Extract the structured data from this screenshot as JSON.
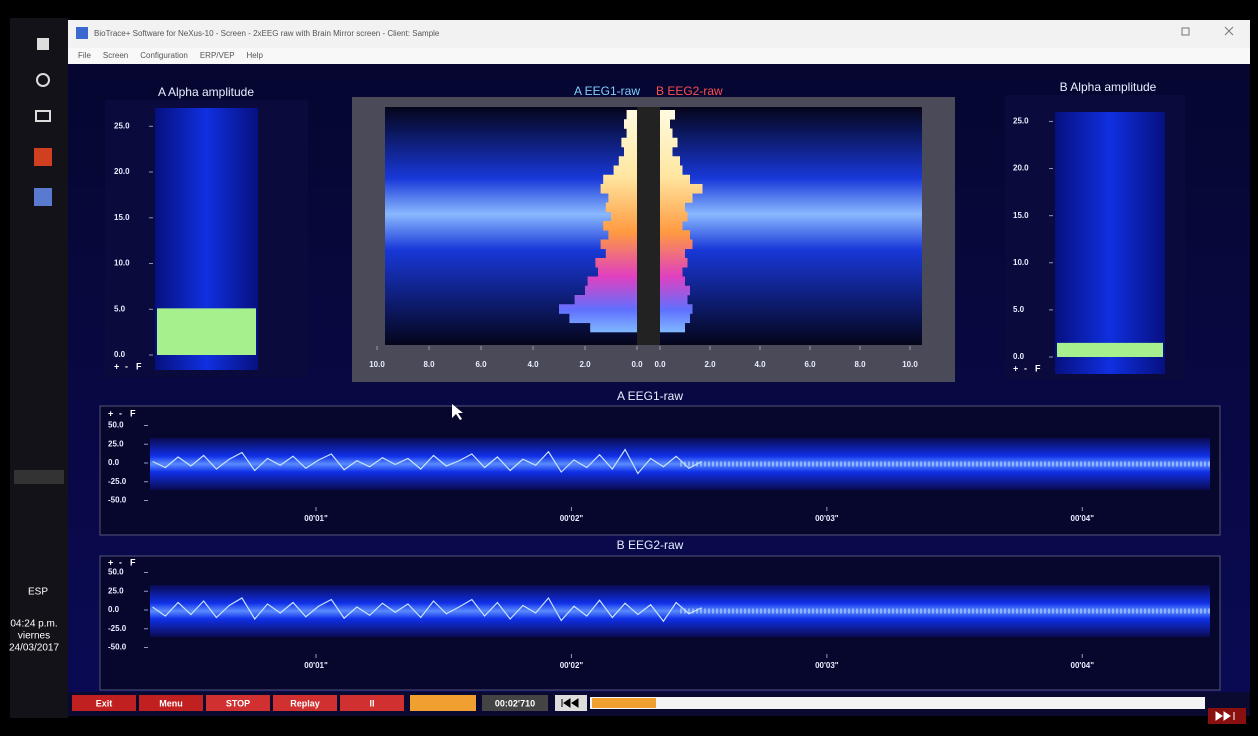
{
  "window": {
    "title": "BioTrace+ Software for NeXus-10 - Screen - 2xEEG raw with Brain Mirror screen - Client: Sample",
    "menu": [
      "File",
      "Screen",
      "Configuration",
      "ERP/VEP",
      "Help"
    ]
  },
  "taskbar": {
    "language": "ESP",
    "time": "04:24 p.m.",
    "day": "viernes",
    "date": "24/03/2017"
  },
  "panel_controls": [
    "+",
    "-",
    "F"
  ],
  "toolbar": {
    "buttons": [
      "Exit",
      "Menu",
      "STOP",
      "Replay",
      "II"
    ],
    "time": "00:02'710"
  },
  "chart_data": [
    {
      "type": "bar",
      "title": "A Alpha amplitude",
      "values": [
        5.1
      ],
      "color": "#a6f08e",
      "ylim": [
        0,
        27
      ],
      "yticks": [
        {
          "value": 0,
          "label": "0.0"
        },
        {
          "value": 5,
          "label": "5.0"
        },
        {
          "value": 10,
          "label": "10.0"
        },
        {
          "value": 15,
          "label": "15.0"
        },
        {
          "value": 20,
          "label": "20.0"
        },
        {
          "value": 25,
          "label": "25.0"
        }
      ]
    },
    {
      "type": "bar",
      "title": "B Alpha amplitude",
      "values": [
        1.5
      ],
      "color": "#a6f08e",
      "ylim": [
        0,
        26
      ],
      "yticks": [
        {
          "value": 0,
          "label": "0.0"
        },
        {
          "value": 5,
          "label": "5.0"
        },
        {
          "value": 10,
          "label": "10.0"
        },
        {
          "value": 15,
          "label": "15.0"
        },
        {
          "value": 20,
          "label": "20.0"
        },
        {
          "value": 25,
          "label": "25.0"
        }
      ]
    },
    {
      "type": "mirror",
      "series": [
        {
          "name": "A EEG1-raw",
          "color": "#7fd0ff",
          "values": [
            0.4,
            0.5,
            0.4,
            0.6,
            0.5,
            0.7,
            0.9,
            1.3,
            1.4,
            1.1,
            1.2,
            1.0,
            1.3,
            1.1,
            1.4,
            1.2,
            1.6,
            1.5,
            1.9,
            2.0,
            2.4,
            3.0,
            2.6,
            1.8
          ]
        },
        {
          "name": "B EEG2-raw",
          "color": "#ff5050",
          "values": [
            0.6,
            0.4,
            0.5,
            0.7,
            0.5,
            0.8,
            0.9,
            1.2,
            1.7,
            1.3,
            1.0,
            1.1,
            0.9,
            1.2,
            1.3,
            1.0,
            1.1,
            0.9,
            1.0,
            1.2,
            1.1,
            1.3,
            1.2,
            1.0
          ]
        }
      ],
      "xlim": [
        0,
        10
      ],
      "xticks": [
        {
          "value": 0,
          "label": "0.0"
        },
        {
          "value": 2,
          "label": "2.0"
        },
        {
          "value": 4,
          "label": "4.0"
        },
        {
          "value": 6,
          "label": "6.0"
        },
        {
          "value": 8,
          "label": "8.0"
        },
        {
          "value": 10,
          "label": "10.0"
        }
      ]
    },
    {
      "type": "line",
      "title": "A EEG1-raw",
      "color": "#c8e4ff",
      "x": [
        0.36,
        0.41,
        0.46,
        0.51,
        0.56,
        0.61,
        0.66,
        0.71,
        0.76,
        0.81,
        0.86,
        0.91,
        0.96,
        1.01,
        1.06,
        1.11,
        1.16,
        1.21,
        1.26,
        1.31,
        1.36,
        1.41,
        1.46,
        1.51,
        1.56,
        1.61,
        1.66,
        1.71,
        1.76,
        1.81,
        1.86,
        1.91,
        1.96,
        2.01,
        2.06,
        2.11,
        2.16,
        2.21,
        2.26,
        2.31,
        2.36,
        2.41,
        2.46,
        2.51
      ],
      "values": [
        2,
        -6,
        8,
        -4,
        10,
        -8,
        5,
        14,
        -10,
        6,
        -3,
        9,
        -7,
        4,
        12,
        -9,
        3,
        -5,
        7,
        -2,
        6,
        -8,
        10,
        -4,
        3,
        12,
        -6,
        8,
        -10,
        5,
        -3,
        15,
        -12,
        4,
        -6,
        11,
        -8,
        18,
        -14,
        6,
        -5,
        9,
        -7,
        2
      ],
      "xlim": [
        0.35,
        4.5
      ],
      "xticks": [
        {
          "value": 1,
          "label": "00'01\""
        },
        {
          "value": 2,
          "label": "00'02\""
        },
        {
          "value": 3,
          "label": "00'03\""
        },
        {
          "value": 4,
          "label": "00'04\""
        }
      ],
      "ylim": [
        -60,
        60
      ],
      "yticks": [
        {
          "value": 50,
          "label": "50.0"
        },
        {
          "value": 25,
          "label": "25.0"
        },
        {
          "value": 0,
          "label": "0.0"
        },
        {
          "value": -25,
          "label": "-25.0"
        },
        {
          "value": -50,
          "label": "-50.0"
        }
      ]
    },
    {
      "type": "line",
      "title": "B EEG2-raw",
      "color": "#c8e4ff",
      "x": [
        0.36,
        0.41,
        0.46,
        0.51,
        0.56,
        0.61,
        0.66,
        0.71,
        0.76,
        0.81,
        0.86,
        0.91,
        0.96,
        1.01,
        1.06,
        1.11,
        1.16,
        1.21,
        1.26,
        1.31,
        1.36,
        1.41,
        1.46,
        1.51,
        1.56,
        1.61,
        1.66,
        1.71,
        1.76,
        1.81,
        1.86,
        1.91,
        1.96,
        2.01,
        2.06,
        2.11,
        2.16,
        2.21,
        2.26,
        2.31,
        2.36,
        2.41,
        2.46,
        2.51
      ],
      "values": [
        4,
        -8,
        10,
        -6,
        12,
        -10,
        6,
        16,
        -12,
        8,
        -4,
        10,
        -9,
        5,
        14,
        -11,
        4,
        -7,
        9,
        -3,
        8,
        -10,
        12,
        -5,
        4,
        14,
        -8,
        10,
        -12,
        6,
        -4,
        16,
        -14,
        5,
        -8,
        13,
        -10,
        9,
        -6,
        7,
        -15,
        10,
        -5,
        3
      ],
      "xlim": [
        0.35,
        4.5
      ],
      "xticks": [
        {
          "value": 1,
          "label": "00'01\""
        },
        {
          "value": 2,
          "label": "00'02\""
        },
        {
          "value": 3,
          "label": "00'03\""
        },
        {
          "value": 4,
          "label": "00'04\""
        }
      ],
      "ylim": [
        -60,
        60
      ],
      "yticks": [
        {
          "value": 50,
          "label": "50.0"
        },
        {
          "value": 25,
          "label": "25.0"
        },
        {
          "value": 0,
          "label": "0.0"
        },
        {
          "value": -25,
          "label": "-25.0"
        },
        {
          "value": -50,
          "label": "-50.0"
        }
      ]
    }
  ]
}
